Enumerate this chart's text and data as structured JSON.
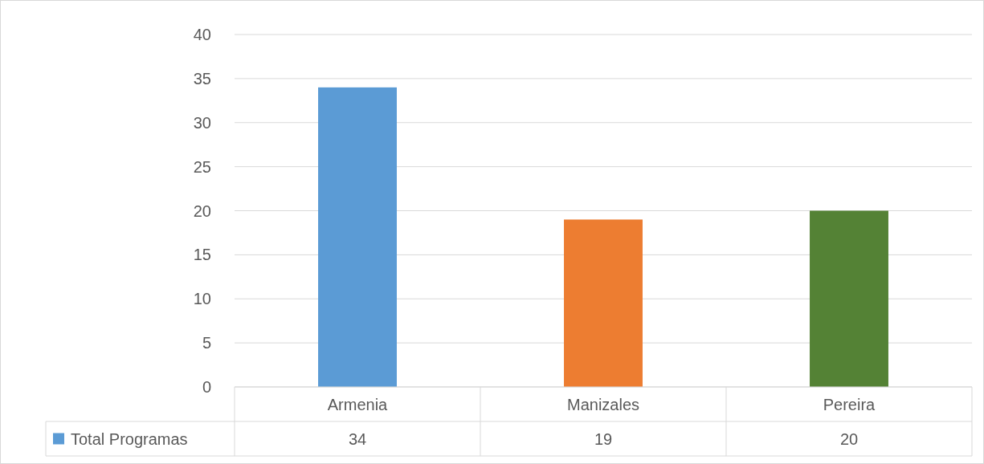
{
  "chart_data": {
    "type": "bar",
    "categories": [
      "Armenia",
      "Manizales",
      "Pereira"
    ],
    "series": [
      {
        "name": "Total Programas",
        "color": "#5b9bd5",
        "colors": [
          "#5b9bd5",
          "#ed7d31",
          "#548235"
        ],
        "values": [
          34,
          19,
          20
        ]
      }
    ],
    "ylim": [
      0,
      40
    ],
    "yticks": [
      0,
      5,
      10,
      15,
      20,
      25,
      30,
      35,
      40
    ],
    "grid": "y",
    "data_labels": true
  }
}
